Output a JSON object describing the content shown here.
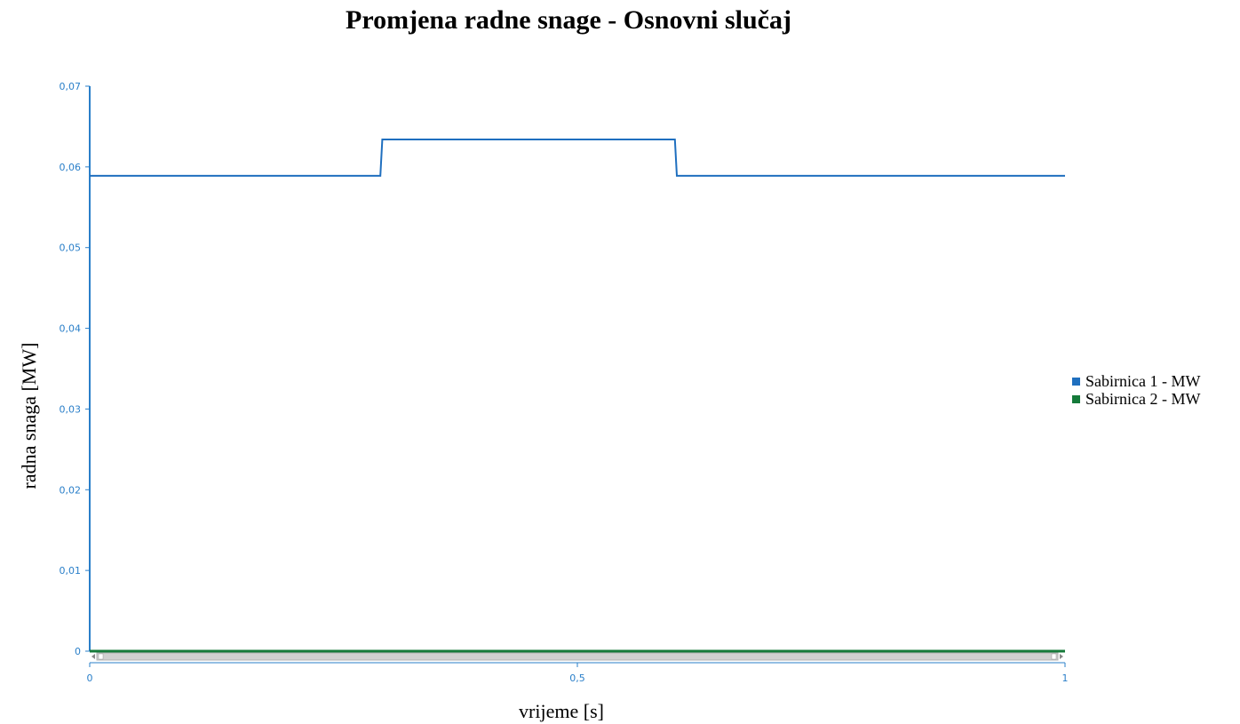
{
  "chart_data": {
    "type": "line",
    "title": "Promjena radne snage - Osnovni slučaj",
    "xlabel": "vrijeme [s]",
    "ylabel": "radna snaga [MW]",
    "xlim": [
      0,
      1
    ],
    "ylim": [
      0,
      0.07
    ],
    "x_ticks": [
      {
        "value": 0,
        "label": "0"
      },
      {
        "value": 0.5,
        "label": "0,5"
      },
      {
        "value": 1,
        "label": "1"
      }
    ],
    "y_ticks": [
      {
        "value": 0,
        "label": "0"
      },
      {
        "value": 0.01,
        "label": "0,01"
      },
      {
        "value": 0.02,
        "label": "0,02"
      },
      {
        "value": 0.03,
        "label": "0,03"
      },
      {
        "value": 0.04,
        "label": "0,04"
      },
      {
        "value": 0.05,
        "label": "0,05"
      },
      {
        "value": 0.06,
        "label": "0,06"
      },
      {
        "value": 0.07,
        "label": "0,07"
      }
    ],
    "grid": false,
    "legend_position": "right",
    "series": [
      {
        "name": "Sabirnica 1 - MW",
        "color": "#1f6fbf",
        "x": [
          0,
          0.298,
          0.3,
          0.6,
          0.602,
          1
        ],
        "y": [
          0.0589,
          0.0589,
          0.0634,
          0.0634,
          0.0589,
          0.0589
        ]
      },
      {
        "name": "Sabirnica 2 - MW",
        "color": "#157a3a",
        "x": [
          0,
          1
        ],
        "y": [
          0,
          0
        ]
      }
    ]
  },
  "colors": {
    "axis": "#2a7fc9",
    "scrollbar_track": "#d0d0d0"
  }
}
